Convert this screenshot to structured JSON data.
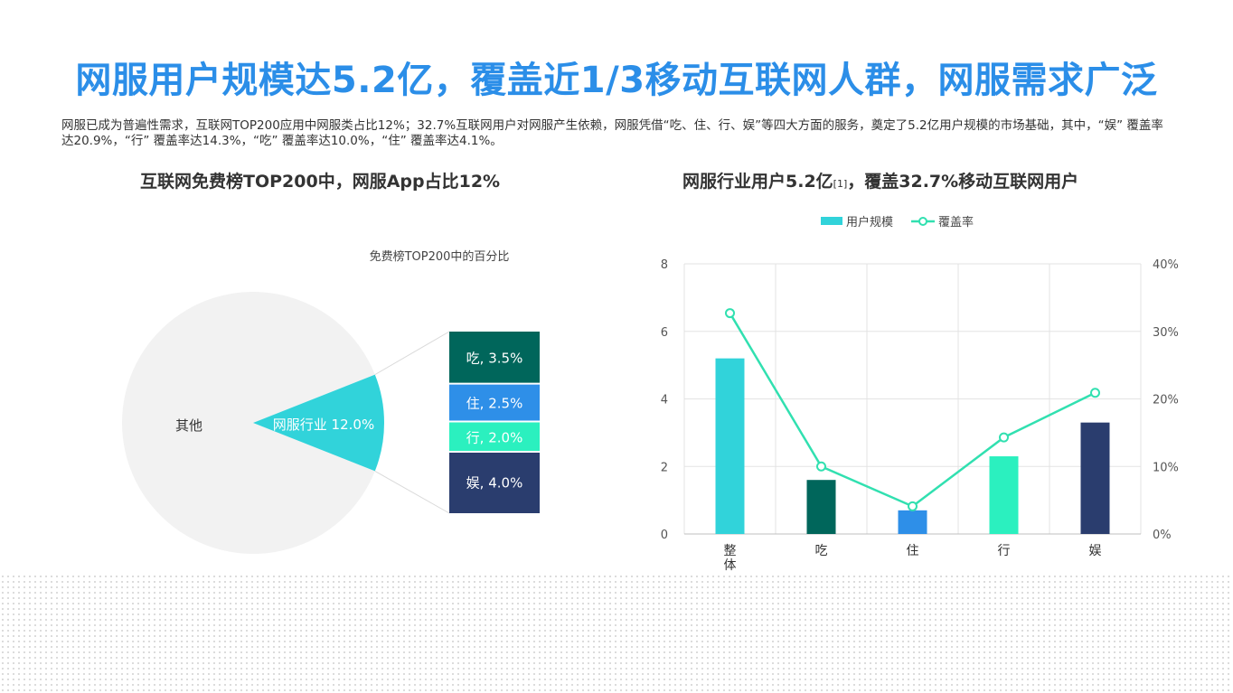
{
  "title": "网服用户规模达5.2亿，覆盖近1/3移动互联网人群，网服需求广泛",
  "description": "网服已成为普遍性需求，互联网TOP200应用中网服类占比12%；32.7%互联网用户对网服产生依赖，网服凭借“吃、住、行、娱”等四大方面的服务，奠定了5.2亿用户规模的市场基础，其中，“娱” 覆盖率达20.9%，“行” 覆盖率达14.3%，“吃” 覆盖率达10.0%，“住” 覆盖率达4.1%。",
  "left_heading": "互联网免费榜TOP200中，网服App占比12%",
  "right_heading": {
    "text_before": "网服行业用户5.2亿",
    "ref": "[1]",
    "text_after": "，覆盖32.7%移动互联网用户"
  },
  "colors": {
    "title": "#2b8ee8",
    "pie_other": "#f2f2f2",
    "pie_highlight": "#31d3da",
    "eat": "#00665b",
    "live": "#2e8fe8",
    "travel": "#2bf0bf",
    "fun": "#2a3d6e",
    "line": "#31e0b0",
    "bar_total": "#31d3da"
  },
  "chart_data": [
    {
      "type": "pie",
      "title": "免费榜TOP200中的百分比",
      "slices": [
        {
          "label": "其他",
          "value": 88.0,
          "color": "#f2f2f2",
          "label_text": "其他"
        },
        {
          "label": "网服行业",
          "value": 12.0,
          "color": "#31d3da",
          "label_text": "网服行业 12.0%"
        }
      ],
      "breakdown_of": "网服行业",
      "breakdown": [
        {
          "label": "吃",
          "value": 3.5,
          "color": "#00665b",
          "label_text": "吃, 3.5%"
        },
        {
          "label": "住",
          "value": 2.5,
          "color": "#2e8fe8",
          "label_text": "住, 2.5%"
        },
        {
          "label": "行",
          "value": 2.0,
          "color": "#2bf0bf",
          "label_text": "行, 2.0%"
        },
        {
          "label": "娱",
          "value": 4.0,
          "color": "#2a3d6e",
          "label_text": "娱, 4.0%"
        }
      ]
    },
    {
      "type": "bar",
      "categories": [
        "整体",
        "吃",
        "住",
        "行",
        "娱"
      ],
      "series": [
        {
          "name": "用户规模",
          "type": "bar",
          "values": [
            5.2,
            1.6,
            0.7,
            2.3,
            3.3
          ],
          "colors": [
            "#31d3da",
            "#00665b",
            "#2e8fe8",
            "#2bf0bf",
            "#2a3d6e"
          ]
        },
        {
          "name": "覆盖率",
          "type": "line",
          "axis": "right",
          "values": [
            32.7,
            10.0,
            4.1,
            14.3,
            20.9
          ]
        }
      ],
      "ylim": [
        0,
        8
      ],
      "yticks": [
        "0",
        "2",
        "4",
        "6",
        "8"
      ],
      "y2lim": [
        0,
        40
      ],
      "y2ticks": [
        "0%",
        "10%",
        "20%",
        "30%",
        "40%"
      ],
      "grid": true,
      "legend": "top-center"
    }
  ]
}
